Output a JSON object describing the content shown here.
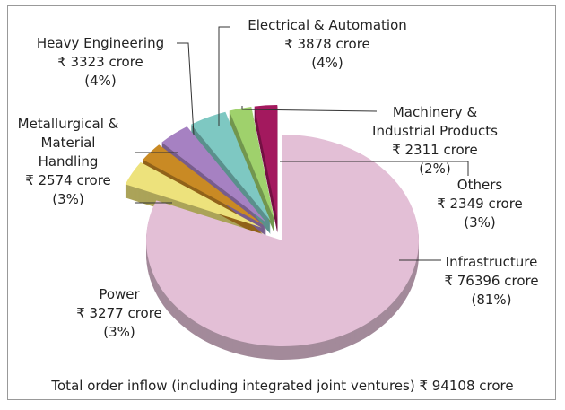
{
  "chart_data": {
    "type": "pie",
    "categories": [
      "Infrastructure",
      "Power",
      "Metallurgical & Material Handling",
      "Heavy Engineering",
      "Electrical & Automation",
      "Machinery & Industrial Products",
      "Others"
    ],
    "values": [
      76396,
      3277,
      2574,
      3323,
      3878,
      2311,
      2349
    ],
    "value_labels": [
      "₹ 76396 crore",
      "₹ 3277 crore",
      "₹ 2574 crore",
      "₹ 3323 crore",
      "₹ 3878 crore",
      "₹ 2311 crore",
      "₹ 2349 crore"
    ],
    "percentages": [
      81,
      3,
      3,
      4,
      4,
      2,
      3
    ],
    "percent_labels": [
      "(81%)",
      "(3%)",
      "(3%)",
      "(4%)",
      "(4%)",
      "(2%)",
      "(3%)"
    ],
    "colors": [
      "#e3bfd6",
      "#ede27c",
      "#c98a24",
      "#a681c2",
      "#7ec8c2",
      "#9fd16c",
      "#a3195e"
    ],
    "note": "Total order inflow (including integrated joint ventures) ₹ 94108 crore"
  }
}
